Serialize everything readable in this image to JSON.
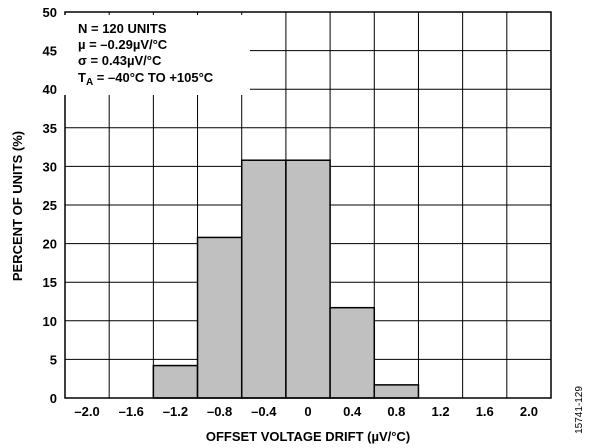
{
  "chart_data": {
    "type": "bar",
    "title": "",
    "xlabel": "OFFSET VOLTAGE DRIFT (µV/°C)",
    "ylabel": "PERCENT OF UNITS (%)",
    "xlim": [
      -2.2,
      2.2
    ],
    "ylim": [
      0,
      50
    ],
    "x_ticks": [
      "–2.0",
      "–1.6",
      "–1.2",
      "–0.8",
      "–0.4",
      "0",
      "0.4",
      "0.8",
      "1.2",
      "1.6",
      "2.0"
    ],
    "x_tick_values": [
      -2.0,
      -1.6,
      -1.2,
      -0.8,
      -0.4,
      0,
      0.4,
      0.8,
      1.2,
      1.6,
      2.0
    ],
    "y_ticks": [
      0,
      5,
      10,
      15,
      20,
      25,
      30,
      35,
      40,
      45,
      50
    ],
    "grid": true,
    "bin_width": 0.4,
    "bins": [
      {
        "center": -1.2,
        "value": 4.2
      },
      {
        "center": -0.8,
        "value": 20.8
      },
      {
        "center": -0.4,
        "value": 30.8
      },
      {
        "center": 0.0,
        "value": 30.8
      },
      {
        "center": 0.4,
        "value": 11.7
      },
      {
        "center": 0.8,
        "value": 1.7
      }
    ],
    "bar_color": "#c0c0c0",
    "annotation": {
      "line1": "N = 120 UNITS",
      "line2": "µ = –0.29µV/°C",
      "line3": "σ = 0.43µV/°C",
      "line4_main": "T",
      "line4_sub": "A",
      "line4_rest": " = –40°C TO +105°C"
    },
    "figure_id": "15741-129"
  }
}
